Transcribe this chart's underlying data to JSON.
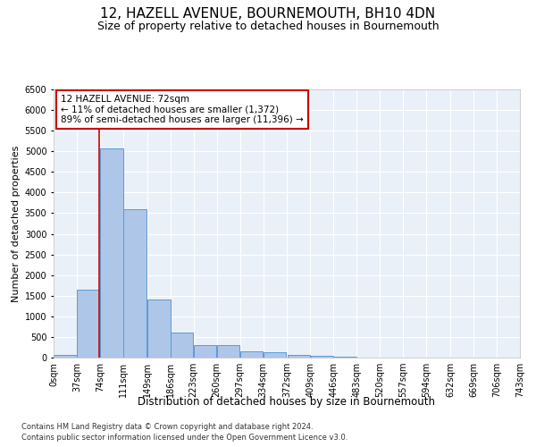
{
  "title": "12, HAZELL AVENUE, BOURNEMOUTH, BH10 4DN",
  "subtitle": "Size of property relative to detached houses in Bournemouth",
  "xlabel": "Distribution of detached houses by size in Bournemouth",
  "ylabel": "Number of detached properties",
  "footnote1": "Contains HM Land Registry data © Crown copyright and database right 2024.",
  "footnote2": "Contains public sector information licensed under the Open Government Licence v3.0.",
  "annotation_title": "12 HAZELL AVENUE: 72sqm",
  "annotation_line1": "← 11% of detached houses are smaller (1,372)",
  "annotation_line2": "89% of semi-detached houses are larger (11,396) →",
  "property_size": 72,
  "bin_edges": [
    0,
    37,
    74,
    111,
    149,
    186,
    223,
    260,
    297,
    334,
    372,
    409,
    446,
    483,
    520,
    557,
    594,
    632,
    669,
    706,
    743
  ],
  "bar_heights": [
    75,
    1650,
    5075,
    3600,
    1400,
    610,
    300,
    300,
    150,
    120,
    75,
    50,
    30,
    0,
    0,
    0,
    0,
    0,
    0,
    0
  ],
  "bar_color": "#aec6e8",
  "bar_edge_color": "#5b9bd5",
  "red_line_color": "#cc0000",
  "annotation_box_color": "#ffffff",
  "annotation_box_edge": "#cc0000",
  "background_color": "#eaf0f8",
  "grid_color": "#ffffff",
  "ylim": [
    0,
    6500
  ],
  "xlim": [
    0,
    743
  ],
  "title_fontsize": 11,
  "subtitle_fontsize": 9,
  "xlabel_fontsize": 8.5,
  "ylabel_fontsize": 8,
  "tick_fontsize": 7,
  "annotation_fontsize": 7.5,
  "footnote_fontsize": 6
}
